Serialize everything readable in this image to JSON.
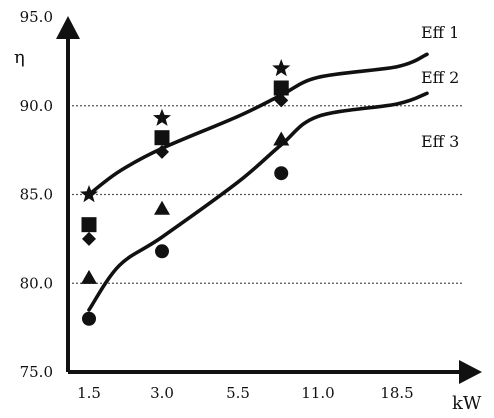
{
  "chart_data": {
    "type": "scatter",
    "title": "",
    "ylabel": "η",
    "xlabel": "kW",
    "ylim": [
      75,
      95
    ],
    "categories": [
      "1.5",
      "3.0",
      "5.5",
      "11.0",
      "18.5"
    ],
    "yticks": [
      "75.0",
      "80.0",
      "85.0",
      "90.0",
      "95.0"
    ],
    "grid": "horizontal dotted lines at 80.0, 85.0, 90.0",
    "curves": [
      {
        "label": "Eff 1",
        "x": [
          1.5,
          2.0,
          3.0,
          5.5,
          8.0,
          11.0,
          18.5,
          30.0
        ],
        "values": [
          85.0,
          86.3,
          87.6,
          89.4,
          90.6,
          91.6,
          92.2,
          92.9
        ]
      },
      {
        "label": "Eff 2",
        "x": [],
        "values": []
      },
      {
        "label": "Eff 3",
        "x": [
          1.5,
          2.0,
          3.0,
          5.5,
          8.0,
          11.0,
          18.5,
          30.0
        ],
        "values": [
          78.5,
          81.0,
          82.6,
          85.7,
          87.8,
          89.4,
          90.1,
          90.7
        ]
      }
    ],
    "series": [
      {
        "marker": "star",
        "x": [
          1.5,
          3.0,
          8.0
        ],
        "values": [
          85.0,
          89.3,
          92.1
        ]
      },
      {
        "marker": "square",
        "x": [
          1.5,
          3.0,
          8.0
        ],
        "values": [
          83.3,
          88.2,
          91.0
        ]
      },
      {
        "marker": "diamond",
        "x": [
          1.5,
          3.0,
          8.0
        ],
        "values": [
          82.5,
          87.4,
          90.3
        ]
      },
      {
        "marker": "triangle",
        "x": [
          1.5,
          3.0,
          8.0
        ],
        "values": [
          80.3,
          84.2,
          88.1
        ]
      },
      {
        "marker": "circle",
        "x": [
          1.5,
          3.0,
          8.0
        ],
        "values": [
          78.0,
          81.8,
          86.2
        ]
      }
    ],
    "colors": {
      "ink": "#111111",
      "grid": "#555555",
      "background": "#ffffff"
    }
  }
}
